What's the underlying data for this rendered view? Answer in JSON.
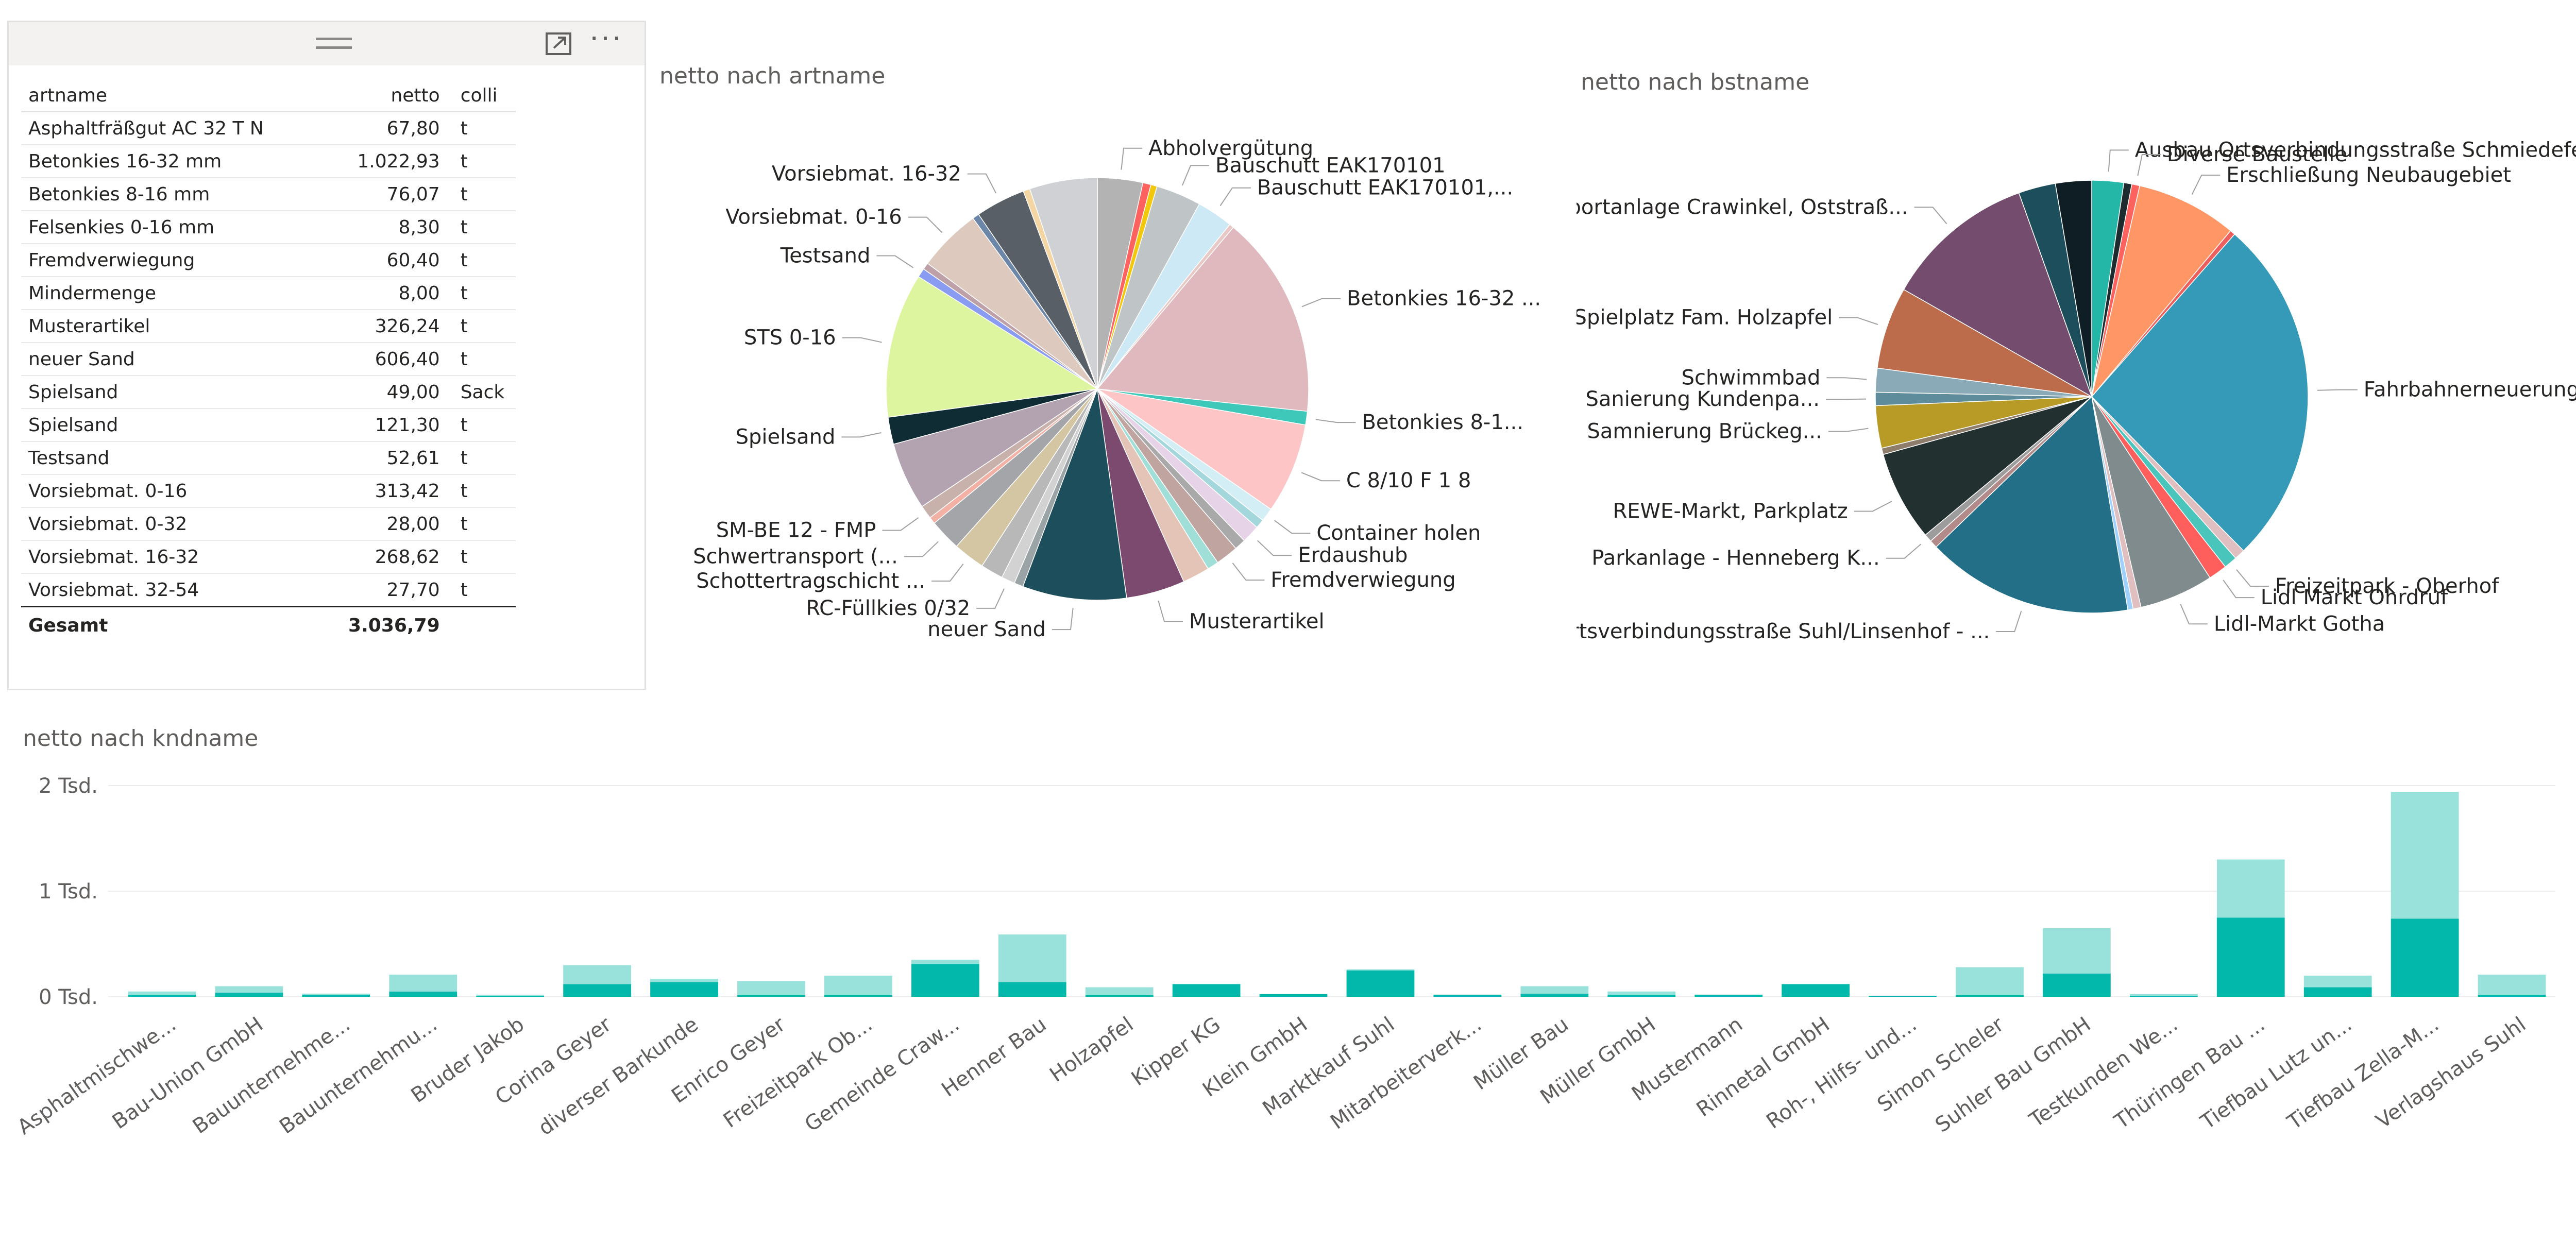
{
  "table": {
    "columns": [
      "artname",
      "netto",
      "colli"
    ],
    "rows": [
      [
        "Asphaltfräßgut AC 32 T N",
        "67,80",
        "t"
      ],
      [
        "Betonkies 16-32 mm",
        "1.022,93",
        "t"
      ],
      [
        "Betonkies 8-16 mm",
        "76,07",
        "t"
      ],
      [
        "Felsenkies 0-16 mm",
        "8,30",
        "t"
      ],
      [
        "Fremdverwiegung",
        "60,40",
        "t"
      ],
      [
        "Mindermenge",
        "8,00",
        "t"
      ],
      [
        "Musterartikel",
        "326,24",
        "t"
      ],
      [
        "neuer Sand",
        "606,40",
        "t"
      ],
      [
        "Spielsand",
        "49,00",
        "Sack"
      ],
      [
        "Spielsand",
        "121,30",
        "t"
      ],
      [
        "Testsand",
        "52,61",
        "t"
      ],
      [
        "Vorsiebmat. 0-16",
        "313,42",
        "t"
      ],
      [
        "Vorsiebmat. 0-32",
        "28,00",
        "t"
      ],
      [
        "Vorsiebmat. 16-32",
        "268,62",
        "t"
      ],
      [
        "Vorsiebmat. 32-54",
        "27,70",
        "t"
      ]
    ],
    "total_label": "Gesamt",
    "total_value": "3.036,79"
  },
  "chart_data": [
    {
      "type": "pie",
      "title": "netto nach artname",
      "slices": [
        {
          "label": "Abholvergütung",
          "value": 100,
          "color": "#b3b3b3"
        },
        {
          "label": "",
          "value": 18,
          "color": "#fd625e"
        },
        {
          "label": "",
          "value": 14,
          "color": "#f2c80f"
        },
        {
          "label": "Bauschutt EAK170101",
          "value": 100,
          "color": "#bfc5c7"
        },
        {
          "label": "Bauschutt EAK170101,...",
          "value": 80,
          "color": "#cde9f5"
        },
        {
          "label": "",
          "value": 10,
          "color": "#e8c9c5"
        },
        {
          "label": "Betonkies 16-32 ...",
          "value": 450,
          "color": "#dfb9bd"
        },
        {
          "label": "Betonkies 8-1...",
          "value": 30,
          "color": "#3ec8ba"
        },
        {
          "label": "C 8/10 F 1 8",
          "value": 200,
          "color": "#fdc5c5"
        },
        {
          "label": "Container holen",
          "value": 30,
          "color": "#d4eef5"
        },
        {
          "label": "",
          "value": 20,
          "color": "#a3d7dc"
        },
        {
          "label": "Erdaushub",
          "value": 40,
          "color": "#e6d3e8"
        },
        {
          "label": "",
          "value": 25,
          "color": "#a9a9a9"
        },
        {
          "label": "Fremdverwiegung",
          "value": 50,
          "color": "#c0a4a0"
        },
        {
          "label": "",
          "value": 25,
          "color": "#9fdfd8"
        },
        {
          "label": "",
          "value": 60,
          "color": "#e5c4b8"
        },
        {
          "label": "Musterartikel",
          "value": 130,
          "color": "#7c4a6f"
        },
        {
          "label": "neuer Sand",
          "value": 230,
          "color": "#1d4e5b"
        },
        {
          "label": "",
          "value": 20,
          "color": "#9aa3a5"
        },
        {
          "label": "RC-Füllkies 0/32",
          "value": 30,
          "color": "#d2d2d2"
        },
        {
          "label": "",
          "value": 50,
          "color": "#b8b8b8"
        },
        {
          "label": "Schottertragschicht ...",
          "value": 70,
          "color": "#d5c6a3"
        },
        {
          "label": "Schwertransport (...",
          "value": 70,
          "color": "#a4a5a8"
        },
        {
          "label": "",
          "value": 15,
          "color": "#f3b1a5"
        },
        {
          "label": "SM-BE 12 - FMP",
          "value": 30,
          "color": "#c9b1ab"
        },
        {
          "label": "",
          "value": 150,
          "color": "#b3a3b0"
        },
        {
          "label": "Spielsand",
          "value": 60,
          "color": "#0f2b33"
        },
        {
          "label": "STS 0-16",
          "value": 320,
          "color": "#ddf59e"
        },
        {
          "label": "Testsand",
          "value": 20,
          "color": "#8a9cf1"
        },
        {
          "label": "",
          "value": 15,
          "color": "#bea0a8"
        },
        {
          "label": "Vorsiebmat. 0-16",
          "value": 140,
          "color": "#ddc9bd"
        },
        {
          "label": "",
          "value": 15,
          "color": "#6b86a6"
        },
        {
          "label": "Vorsiebmat. 16-32",
          "value": 110,
          "color": "#595f66"
        },
        {
          "label": "",
          "value": 15,
          "color": "#f3d6a3"
        },
        {
          "label": "",
          "value": 150,
          "color": "#cfd1d4"
        }
      ]
    },
    {
      "type": "pie",
      "title": "netto nach bstname",
      "slices": [
        {
          "label": "Ausbau Ortsverbindungsstraße Schmiedefel...",
          "value": 60,
          "color": "#24b6a6"
        },
        {
          "label": "",
          "value": 15,
          "color": "#1d2a2e"
        },
        {
          "label": "Diverse Baustelle",
          "value": 15,
          "color": "#fd625e"
        },
        {
          "label": "Erschließung Neubaugebiet",
          "value": 190,
          "color": "#fe9666"
        },
        {
          "label": "",
          "value": 10,
          "color": "#ed5f5c"
        },
        {
          "label": "Fahrbahnerneuerung/ H...",
          "value": 660,
          "color": "#3599b8"
        },
        {
          "label": "",
          "value": 20,
          "color": "#dfbfbf"
        },
        {
          "label": "Freizeitpark - Oberhof",
          "value": 25,
          "color": "#4ac5bb"
        },
        {
          "label": "Lidl Markt Ohrdruf",
          "value": 35,
          "color": "#fe5f5c"
        },
        {
          "label": "Lidl-Markt Gotha",
          "value": 140,
          "color": "#7f8b8c"
        },
        {
          "label": "",
          "value": 15,
          "color": "#dfbfbf"
        },
        {
          "label": "",
          "value": 10,
          "color": "#a0d1ff"
        },
        {
          "label": "Ortsverbindungsstraße Suhl/Linsenhof - ...",
          "value": 390,
          "color": "#226f87"
        },
        {
          "label": "",
          "value": 15,
          "color": "#b38a8a"
        },
        {
          "label": "Parkanlage - Henneberg K...",
          "value": 15,
          "color": "#9c9c9c"
        },
        {
          "label": "REWE-Markt, Parkplatz",
          "value": 170,
          "color": "#233030"
        },
        {
          "label": "",
          "value": 12,
          "color": "#8e7d6b"
        },
        {
          "label": "Samnierung Brückeg...",
          "value": 80,
          "color": "#b89b27"
        },
        {
          "label": "Sanierung Kundenpa...",
          "value": 25,
          "color": "#5e8c9a"
        },
        {
          "label": "Schwimmbad",
          "value": 45,
          "color": "#8aaab8"
        },
        {
          "label": "Spielplatz Fam. Holzapfel",
          "value": 155,
          "color": "#bc6c4b"
        },
        {
          "label": "Sportanlage Crawinkel, Oststraß...",
          "value": 285,
          "color": "#744c6d"
        },
        {
          "label": "",
          "value": 70,
          "color": "#1d4e5b"
        },
        {
          "label": "",
          "value": 68,
          "color": "#0f1e24"
        }
      ]
    },
    {
      "type": "bar",
      "title": "netto nach kndname",
      "stacked": true,
      "ylim": [
        0,
        2000
      ],
      "yticks": [
        "0 Tsd.",
        "1 Tsd.",
        "2 Tsd."
      ],
      "categories": [
        "Asphaltmischwe...",
        "Bau-Union GmbH",
        "Bauunternehme...",
        "Bauunternehmu...",
        "Bruder Jakob",
        "Corina Geyer",
        "diverser Barkunde",
        "Enrico Geyer",
        "Freizeitpark Ob...",
        "Gemeinde Craw...",
        "Henner Bau",
        "Holzapfel",
        "Kipper KG",
        "Klein GmbH",
        "Marktkauf Suhl",
        "Mitarbeiterverk...",
        "Müller Bau",
        "Müller GmbH",
        "Mustermann",
        "Rinnetal GmbH",
        "Roh-, Hilfs- und...",
        "Simon Scheler",
        "Suhler Bau GmbH",
        "Testkunden We...",
        "Thüringen Bau ...",
        "Tiefbau Lutz un...",
        "Tiefbau Zella-M...",
        "Verlagshaus Suhl"
      ],
      "series": [
        {
          "color": "#01b8aa",
          "values": [
            20,
            40,
            20,
            50,
            10,
            120,
            140,
            15,
            15,
            310,
            140,
            15,
            120,
            25,
            250,
            20,
            30,
            20,
            20,
            120,
            10,
            15,
            220,
            10,
            750,
            90,
            740,
            20
          ]
        },
        {
          "color": "#99e2db",
          "values": [
            30,
            60,
            10,
            160,
            10,
            180,
            30,
            135,
            185,
            40,
            450,
            75,
            0,
            0,
            10,
            0,
            70,
            30,
            0,
            0,
            0,
            265,
            430,
            15,
            550,
            110,
            1200,
            190
          ]
        }
      ]
    }
  ]
}
